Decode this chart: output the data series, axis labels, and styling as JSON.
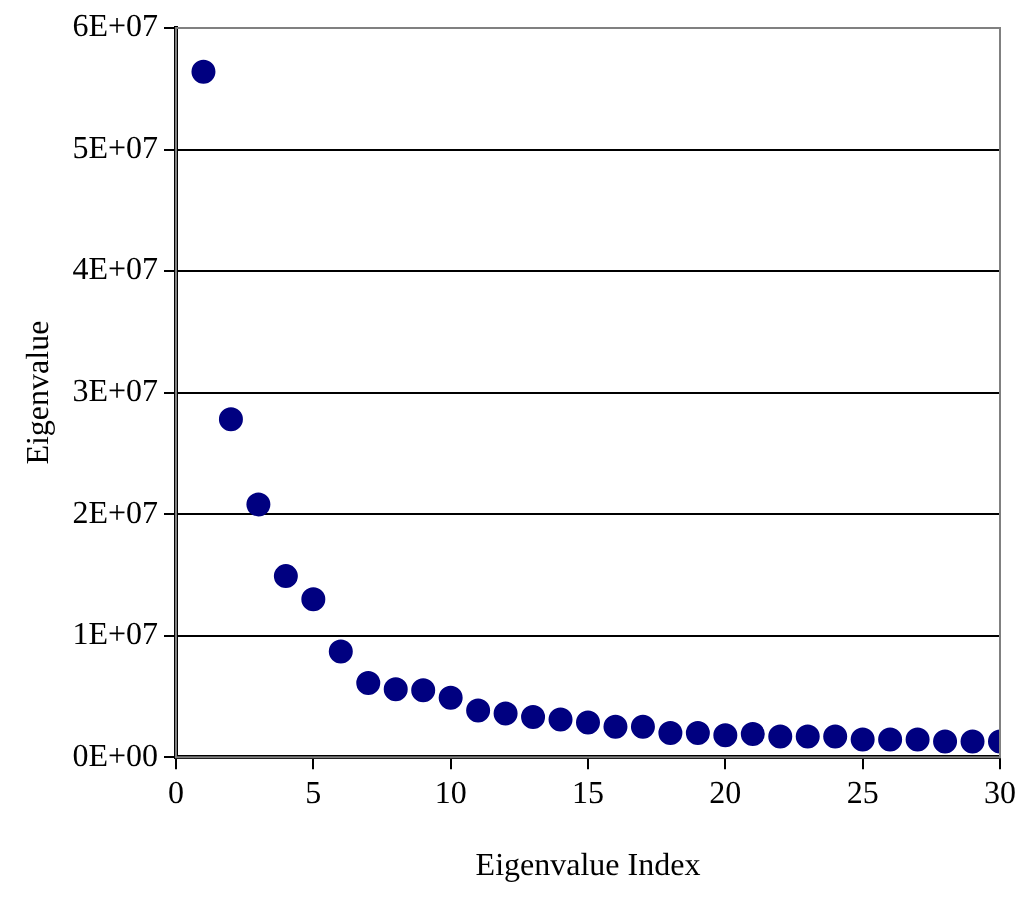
{
  "chart_data": {
    "type": "scatter",
    "xlabel": "Eigenvalue Index",
    "ylabel": "Eigenvalue",
    "x": [
      1,
      2,
      3,
      4,
      5,
      6,
      7,
      8,
      9,
      10,
      11,
      12,
      13,
      14,
      15,
      16,
      17,
      18,
      19,
      20,
      21,
      22,
      23,
      24,
      25,
      26,
      27,
      28,
      29,
      30
    ],
    "series": [
      {
        "color": "#000080",
        "values": [
          56400000,
          27800000,
          20800000,
          14900000,
          13000000,
          8700000,
          6100000,
          5600000,
          5500000,
          4900000,
          3850000,
          3600000,
          3300000,
          3100000,
          2850000,
          2500000,
          2500000,
          2000000,
          2000000,
          1800000,
          1900000,
          1700000,
          1700000,
          1700000,
          1450000,
          1450000,
          1450000,
          1300000,
          1300000,
          1300000
        ]
      }
    ],
    "xlim": [
      0,
      30
    ],
    "xticks": [
      0,
      5,
      10,
      15,
      20,
      25,
      30
    ],
    "ylim": [
      0,
      60000000
    ],
    "yticks": [
      {
        "value": 0,
        "label": "0E+00"
      },
      {
        "value": 10000000,
        "label": "1E+07"
      },
      {
        "value": 20000000,
        "label": "2E+07"
      },
      {
        "value": 30000000,
        "label": "3E+07"
      },
      {
        "value": 40000000,
        "label": "4E+07"
      },
      {
        "value": 50000000,
        "label": "5E+07"
      },
      {
        "value": 60000000,
        "label": "6E+07"
      }
    ],
    "grid": "y",
    "legend": false,
    "marker": "circle"
  }
}
